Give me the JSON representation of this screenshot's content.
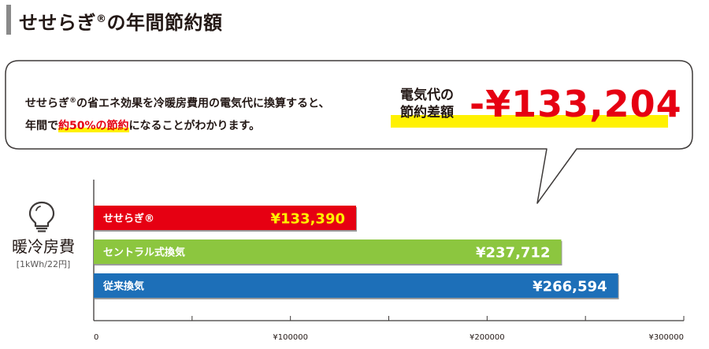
{
  "header": {
    "title_main": "せせらぎ",
    "title_reg": "®",
    "title_rest": "の年間節約額"
  },
  "callout": {
    "line1_a": "せせらぎ",
    "line1_reg": "®",
    "line1_b": "の省エネ効果を冷暖房費用の電気代に換算すると、",
    "line2_a": "年間で",
    "line2_highlight": "約50%の節約",
    "line2_b": "になることがわかります。",
    "saving_label_1": "電気代の",
    "saving_label_2": "節約差額",
    "saving_value": "-¥133,204"
  },
  "colors": {
    "red": "#e60012",
    "green": "#8cc63f",
    "blue": "#1d6fb8",
    "highlight": "#fff100",
    "seseragi_value_text": "#fff100"
  },
  "y_label": {
    "title": "暖冷房費",
    "unit": "[1kWh/22円]",
    "icon": "lightbulb-icon"
  },
  "chart_data": {
    "type": "bar",
    "orientation": "horizontal",
    "categories": [
      "せせらぎ®",
      "セントラル式換気",
      "従来換気"
    ],
    "values": [
      133390,
      237712,
      266594
    ],
    "value_labels": [
      "¥133,390",
      "¥237,712",
      "¥266,594"
    ],
    "bar_colors": [
      "#e60012",
      "#8cc63f",
      "#1d6fb8"
    ],
    "xlim": [
      0,
      300000
    ],
    "x_ticks": [
      0,
      100000,
      200000,
      300000
    ],
    "x_tick_labels": [
      "0",
      "¥100000",
      "¥200000",
      "¥300000"
    ],
    "grid": false,
    "title": "",
    "xlabel": "",
    "ylabel": "暖冷房費"
  }
}
